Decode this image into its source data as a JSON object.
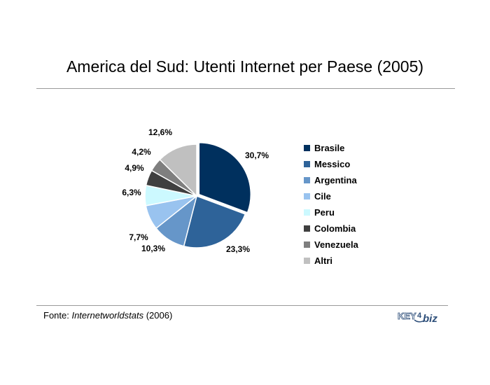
{
  "title": "America del Sud: Utenti Internet per Paese (2005)",
  "source": {
    "prefix": "Fonte: ",
    "name": "Internetworldstats",
    "suffix": " (2006)"
  },
  "logo": {
    "text_left": "KEY",
    "text_mid": "4",
    "text_right": "biz"
  },
  "chart_data": {
    "type": "pie",
    "title": "America del Sud: Utenti Internet per Paese (2005)",
    "categories": [
      "Brasile",
      "Messico",
      "Argentina",
      "Cile",
      "Peru",
      "Colombia",
      "Venezuela",
      "Altri"
    ],
    "values": [
      30.7,
      23.3,
      10.3,
      7.7,
      6.3,
      4.9,
      4.2,
      12.6
    ],
    "labels": [
      "30,7%",
      "23,3%",
      "10,3%",
      "7,7%",
      "6,3%",
      "4,9%",
      "4,2%",
      "12,6%"
    ],
    "colors": [
      "#00305e",
      "#2e6399",
      "#6696c9",
      "#99c3ef",
      "#ccf9ff",
      "#3f3f3f",
      "#7f7f7f",
      "#c0c0c0"
    ],
    "legend_position": "right",
    "exploded_slice": "Brasile"
  }
}
